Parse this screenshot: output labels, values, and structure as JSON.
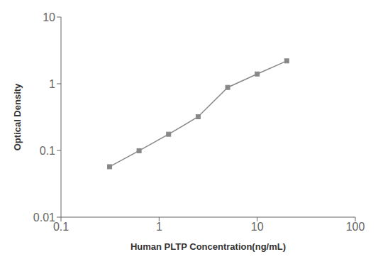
{
  "chart_data": {
    "type": "line",
    "x": [
      0.313,
      0.625,
      1.25,
      2.5,
      5.0,
      10.0,
      20.0
    ],
    "values": [
      0.057,
      0.099,
      0.175,
      0.32,
      0.88,
      1.4,
      2.2
    ],
    "xlabel": "Human PLTP Concentration(ng/mL)",
    "ylabel": "Optical Density",
    "xlim": [
      0.1,
      100
    ],
    "ylim": [
      0.01,
      10
    ],
    "xticks": [
      0.1,
      1,
      10,
      100
    ],
    "yticks": [
      0.01,
      0.1,
      1,
      10
    ],
    "log": true,
    "color": "#888888",
    "marker": "square",
    "line_style": "solid"
  }
}
